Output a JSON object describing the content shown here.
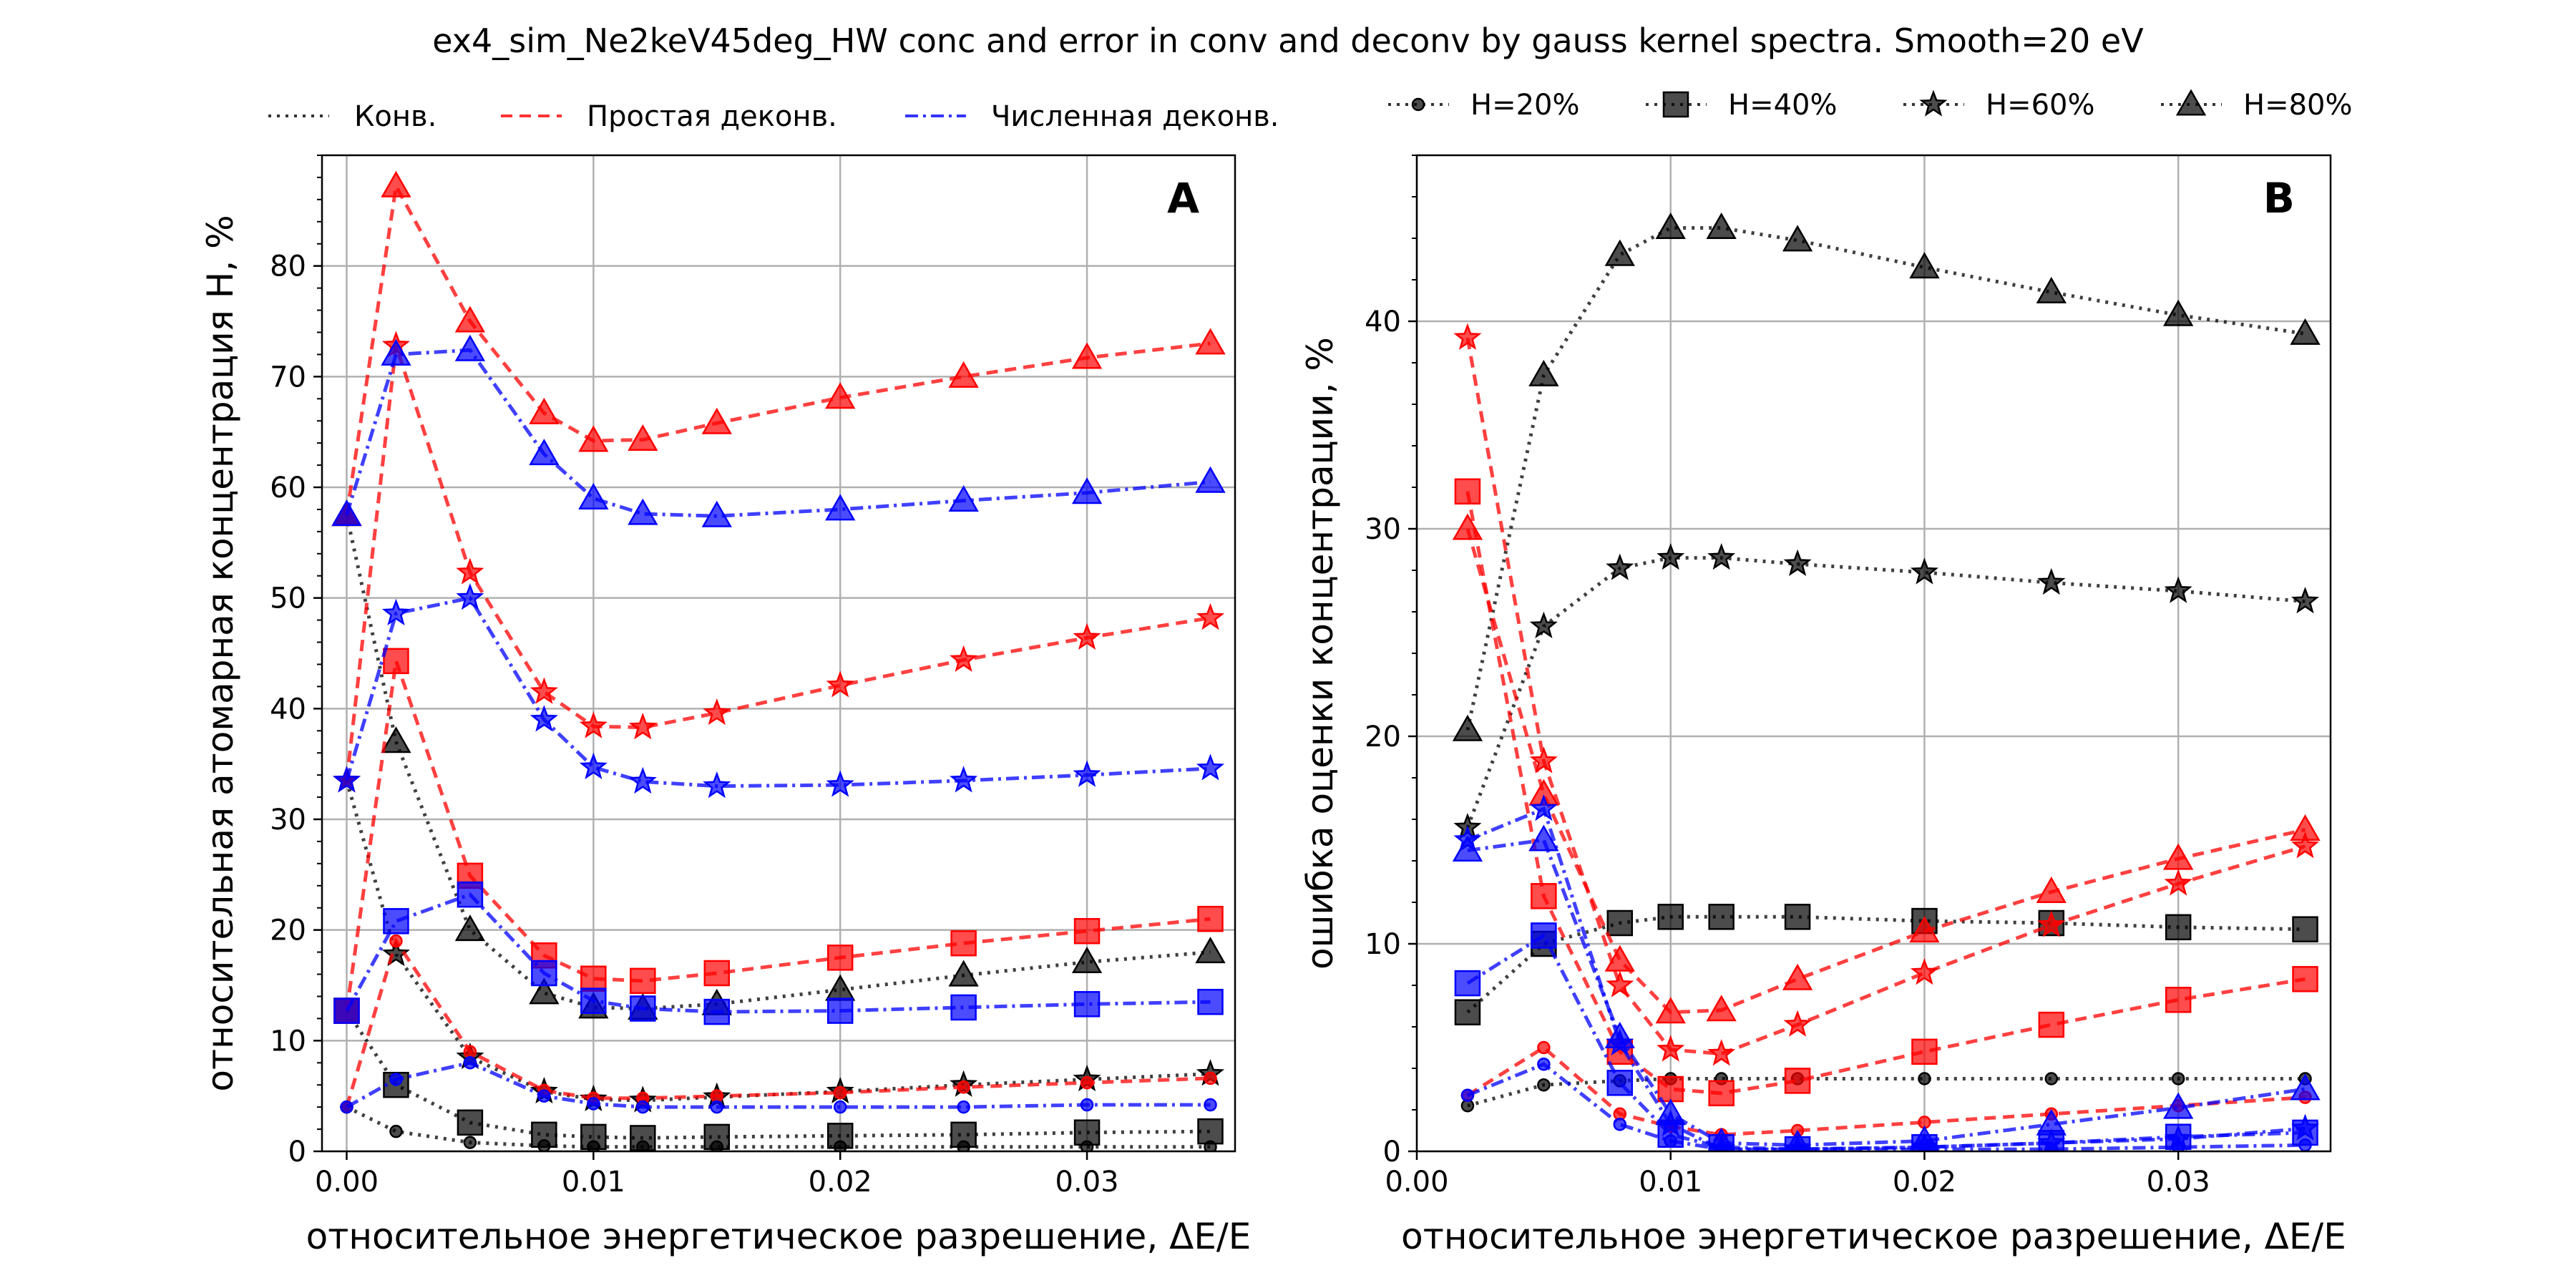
{
  "title": "ex4_sim_Ne2keV45deg_HW conc and error in conv and deconv by gauss kernel spectra. Smooth=20 eV",
  "legend_methods": [
    {
      "key": "conv",
      "label": "Конв.",
      "color": "#000000",
      "dash": "dotted"
    },
    {
      "key": "simple",
      "label": "Простая деконв.",
      "color": "#ff0000",
      "dash": "dashed"
    },
    {
      "key": "numeric",
      "label": "Численная деконв.",
      "color": "#0000ff",
      "dash": "dashdot"
    }
  ],
  "legend_conc": [
    {
      "key": "h20",
      "label": "H=20%",
      "marker": "circle"
    },
    {
      "key": "h40",
      "label": "H=40%",
      "marker": "square"
    },
    {
      "key": "h60",
      "label": "H=60%",
      "marker": "star"
    },
    {
      "key": "h80",
      "label": "H=80%",
      "marker": "triangle"
    }
  ],
  "chart_data": [
    {
      "type": "line",
      "panel_label": "A",
      "xlabel": "относительное энергетическое разрешение, ΔE/E",
      "ylabel": "относительная атомарная концентрация H, %",
      "xlim": [
        -0.001,
        0.036
      ],
      "ylim": [
        0,
        90
      ],
      "xticks": [
        0.0,
        0.01,
        0.02,
        0.03
      ],
      "xtick_labels": [
        "0.00",
        "0.01",
        "0.02",
        "0.03"
      ],
      "yticks": [
        0,
        10,
        20,
        30,
        40,
        50,
        60,
        70,
        80
      ],
      "yminor": 2,
      "grid": true,
      "series": [
        {
          "method": "conv",
          "conc": "h20",
          "x": [
            0,
            0.002,
            0.005,
            0.008,
            0.01,
            0.012,
            0.015,
            0.02,
            0.025,
            0.03,
            0.035
          ],
          "values": [
            4.0,
            1.8,
            0.8,
            0.5,
            0.4,
            0.4,
            0.4,
            0.4,
            0.4,
            0.4,
            0.4
          ]
        },
        {
          "method": "simple",
          "conc": "h20",
          "x": [
            0,
            0.002,
            0.005,
            0.008,
            0.01,
            0.012,
            0.015,
            0.02,
            0.025,
            0.03,
            0.035
          ],
          "values": [
            4.0,
            19.0,
            9.0,
            5.5,
            4.8,
            4.8,
            5.0,
            5.3,
            5.8,
            6.2,
            6.6
          ]
        },
        {
          "method": "numeric",
          "conc": "h20",
          "x": [
            0,
            0.002,
            0.005,
            0.008,
            0.01,
            0.012,
            0.015,
            0.02,
            0.025,
            0.03,
            0.035
          ],
          "values": [
            4.0,
            6.5,
            8.0,
            5.0,
            4.3,
            4.0,
            4.0,
            4.0,
            4.0,
            4.2,
            4.2
          ]
        },
        {
          "method": "conv",
          "conc": "h40",
          "x": [
            0,
            0.002,
            0.005,
            0.008,
            0.01,
            0.012,
            0.015,
            0.02,
            0.025,
            0.03,
            0.035
          ],
          "values": [
            12.7,
            6.0,
            2.6,
            1.5,
            1.3,
            1.2,
            1.3,
            1.4,
            1.5,
            1.7,
            1.8
          ]
        },
        {
          "method": "simple",
          "conc": "h40",
          "x": [
            0,
            0.002,
            0.005,
            0.008,
            0.01,
            0.012,
            0.015,
            0.02,
            0.025,
            0.03,
            0.035
          ],
          "values": [
            12.7,
            44.3,
            24.9,
            17.7,
            15.6,
            15.4,
            16.1,
            17.5,
            18.8,
            19.9,
            21.0
          ]
        },
        {
          "method": "numeric",
          "conc": "h40",
          "x": [
            0,
            0.002,
            0.005,
            0.008,
            0.01,
            0.012,
            0.015,
            0.02,
            0.025,
            0.03,
            0.035
          ],
          "values": [
            12.7,
            20.8,
            23.2,
            16.1,
            13.6,
            12.9,
            12.6,
            12.7,
            13.0,
            13.3,
            13.5
          ]
        },
        {
          "method": "conv",
          "conc": "h60",
          "x": [
            0,
            0.002,
            0.005,
            0.008,
            0.01,
            0.012,
            0.015,
            0.02,
            0.025,
            0.03,
            0.035
          ],
          "values": [
            33.5,
            17.8,
            8.5,
            5.4,
            4.7,
            4.6,
            4.9,
            5.4,
            6.0,
            6.5,
            7.0
          ]
        },
        {
          "method": "simple",
          "conc": "h60",
          "x": [
            0,
            0.002,
            0.005,
            0.008,
            0.01,
            0.012,
            0.015,
            0.02,
            0.025,
            0.03,
            0.035
          ],
          "values": [
            33.5,
            72.8,
            52.3,
            41.5,
            38.4,
            38.3,
            39.6,
            42.1,
            44.4,
            46.4,
            48.2
          ]
        },
        {
          "method": "numeric",
          "conc": "h60",
          "x": [
            0,
            0.002,
            0.005,
            0.008,
            0.01,
            0.012,
            0.015,
            0.02,
            0.025,
            0.03,
            0.035
          ],
          "values": [
            33.5,
            48.6,
            50.0,
            39.0,
            34.7,
            33.4,
            33.0,
            33.1,
            33.5,
            34.0,
            34.6
          ]
        },
        {
          "method": "conv",
          "conc": "h80",
          "x": [
            0,
            0.002,
            0.005,
            0.008,
            0.01,
            0.012,
            0.015,
            0.02,
            0.025,
            0.03,
            0.035
          ],
          "values": [
            57.5,
            37.0,
            20.0,
            14.3,
            13.0,
            12.9,
            13.3,
            14.6,
            15.9,
            17.1,
            18.0
          ]
        },
        {
          "method": "simple",
          "conc": "h80",
          "x": [
            0,
            0.002,
            0.005,
            0.008,
            0.01,
            0.012,
            0.015,
            0.02,
            0.025,
            0.03,
            0.035
          ],
          "values": [
            57.5,
            87.2,
            75.0,
            66.7,
            64.2,
            64.3,
            65.8,
            68.1,
            70.0,
            71.7,
            73.0
          ]
        },
        {
          "method": "numeric",
          "conc": "h80",
          "x": [
            0,
            0.002,
            0.005,
            0.008,
            0.01,
            0.012,
            0.015,
            0.02,
            0.025,
            0.03,
            0.035
          ],
          "values": [
            57.5,
            72.0,
            72.4,
            63.0,
            59.0,
            57.6,
            57.4,
            58.0,
            58.8,
            59.5,
            60.5
          ]
        }
      ]
    },
    {
      "type": "line",
      "panel_label": "B",
      "xlabel": "относительное энергетическое разрешение, ΔE/E",
      "ylabel": "ошибка оценки концентрации, %",
      "xlim": [
        0.0,
        0.036
      ],
      "ylim": [
        0,
        48
      ],
      "xticks": [
        0.0,
        0.01,
        0.02,
        0.03
      ],
      "xtick_labels": [
        "0.00",
        "0.01",
        "0.02",
        "0.03"
      ],
      "yticks": [
        0,
        10,
        20,
        30,
        40
      ],
      "yminor": 2,
      "grid": true,
      "series": [
        {
          "method": "conv",
          "conc": "h20",
          "x": [
            0.002,
            0.005,
            0.008,
            0.01,
            0.012,
            0.015,
            0.02,
            0.025,
            0.03,
            0.035
          ],
          "values": [
            2.2,
            3.2,
            3.4,
            3.5,
            3.5,
            3.5,
            3.5,
            3.5,
            3.5,
            3.5
          ]
        },
        {
          "method": "simple",
          "conc": "h20",
          "x": [
            0.002,
            0.005,
            0.008,
            0.01,
            0.012,
            0.015,
            0.02,
            0.025,
            0.03,
            0.035
          ],
          "values": [
            2.7,
            5.0,
            1.8,
            1.2,
            0.8,
            1.0,
            1.4,
            1.8,
            2.2,
            2.6
          ]
        },
        {
          "method": "numeric",
          "conc": "h20",
          "x": [
            0.002,
            0.005,
            0.008,
            0.01,
            0.012,
            0.015,
            0.02,
            0.025,
            0.03,
            0.035
          ],
          "values": [
            2.7,
            4.2,
            1.3,
            0.5,
            0.1,
            0.1,
            0.1,
            0.1,
            0.2,
            0.3
          ]
        },
        {
          "method": "conv",
          "conc": "h40",
          "x": [
            0.002,
            0.005,
            0.008,
            0.01,
            0.012,
            0.015,
            0.02,
            0.025,
            0.03,
            0.035
          ],
          "values": [
            6.7,
            10.0,
            11.0,
            11.3,
            11.3,
            11.3,
            11.1,
            11.0,
            10.8,
            10.7
          ]
        },
        {
          "method": "simple",
          "conc": "h40",
          "x": [
            0.002,
            0.005,
            0.008,
            0.01,
            0.012,
            0.015,
            0.02,
            0.025,
            0.03,
            0.035
          ],
          "values": [
            31.8,
            12.3,
            4.8,
            3.0,
            2.8,
            3.4,
            4.8,
            6.1,
            7.3,
            8.3
          ]
        },
        {
          "method": "numeric",
          "conc": "h40",
          "x": [
            0.002,
            0.005,
            0.008,
            0.01,
            0.012,
            0.015,
            0.02,
            0.025,
            0.03,
            0.035
          ],
          "values": [
            8.1,
            10.4,
            3.3,
            0.8,
            0.2,
            0.1,
            0.2,
            0.4,
            0.7,
            0.9
          ]
        },
        {
          "method": "conv",
          "conc": "h60",
          "x": [
            0.002,
            0.005,
            0.008,
            0.01,
            0.012,
            0.015,
            0.02,
            0.025,
            0.03,
            0.035
          ],
          "values": [
            15.6,
            25.3,
            28.1,
            28.6,
            28.6,
            28.3,
            27.9,
            27.4,
            27.0,
            26.5
          ]
        },
        {
          "method": "simple",
          "conc": "h60",
          "x": [
            0.002,
            0.005,
            0.008,
            0.01,
            0.012,
            0.015,
            0.02,
            0.025,
            0.03,
            0.035
          ],
          "values": [
            39.2,
            18.8,
            8.0,
            4.9,
            4.7,
            6.1,
            8.6,
            10.9,
            12.9,
            14.7
          ]
        },
        {
          "method": "numeric",
          "conc": "h60",
          "x": [
            0.002,
            0.005,
            0.008,
            0.01,
            0.012,
            0.015,
            0.02,
            0.025,
            0.03,
            0.035
          ],
          "values": [
            15.0,
            16.5,
            5.2,
            1.3,
            0.1,
            0.1,
            0.2,
            0.4,
            0.6,
            1.1
          ]
        },
        {
          "method": "conv",
          "conc": "h80",
          "x": [
            0.002,
            0.005,
            0.008,
            0.01,
            0.012,
            0.015,
            0.02,
            0.025,
            0.03,
            0.035
          ],
          "values": [
            20.3,
            37.4,
            43.2,
            44.5,
            44.5,
            43.9,
            42.6,
            41.4,
            40.3,
            39.4
          ]
        },
        {
          "method": "simple",
          "conc": "h80",
          "x": [
            0.002,
            0.005,
            0.008,
            0.01,
            0.012,
            0.015,
            0.02,
            0.025,
            0.03,
            0.035
          ],
          "values": [
            30.0,
            17.2,
            9.2,
            6.7,
            6.8,
            8.3,
            10.6,
            12.5,
            14.1,
            15.5
          ]
        },
        {
          "method": "numeric",
          "conc": "h80",
          "x": [
            0.002,
            0.005,
            0.008,
            0.01,
            0.012,
            0.015,
            0.02,
            0.025,
            0.03,
            0.035
          ],
          "values": [
            14.5,
            15.0,
            5.5,
            1.8,
            0.4,
            0.3,
            0.5,
            1.3,
            2.1,
            3.0
          ]
        }
      ]
    }
  ]
}
